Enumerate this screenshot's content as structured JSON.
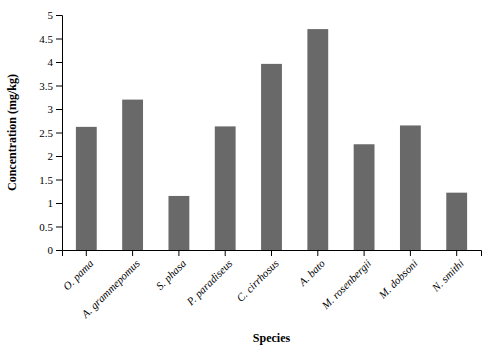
{
  "chart_data": {
    "type": "bar",
    "categories": [
      "O. pama",
      "A. grammepomus",
      "S. phasa",
      "P. paradiseus",
      "C. cirrhosus",
      "A. bato",
      "M. rosenbergii",
      "M. dobsoni",
      "N. smithi"
    ],
    "values": [
      2.62,
      3.2,
      1.15,
      2.63,
      3.96,
      4.7,
      2.25,
      2.65,
      1.22
    ],
    "color": "#696969",
    "xlabel": "Species",
    "ylabel": "Concentration (mg/kg)",
    "ylim": [
      0,
      5
    ],
    "yticks": [
      0,
      0.5,
      1,
      1.5,
      2,
      2.5,
      3,
      3.5,
      4,
      4.5,
      5
    ],
    "grid": false
  }
}
